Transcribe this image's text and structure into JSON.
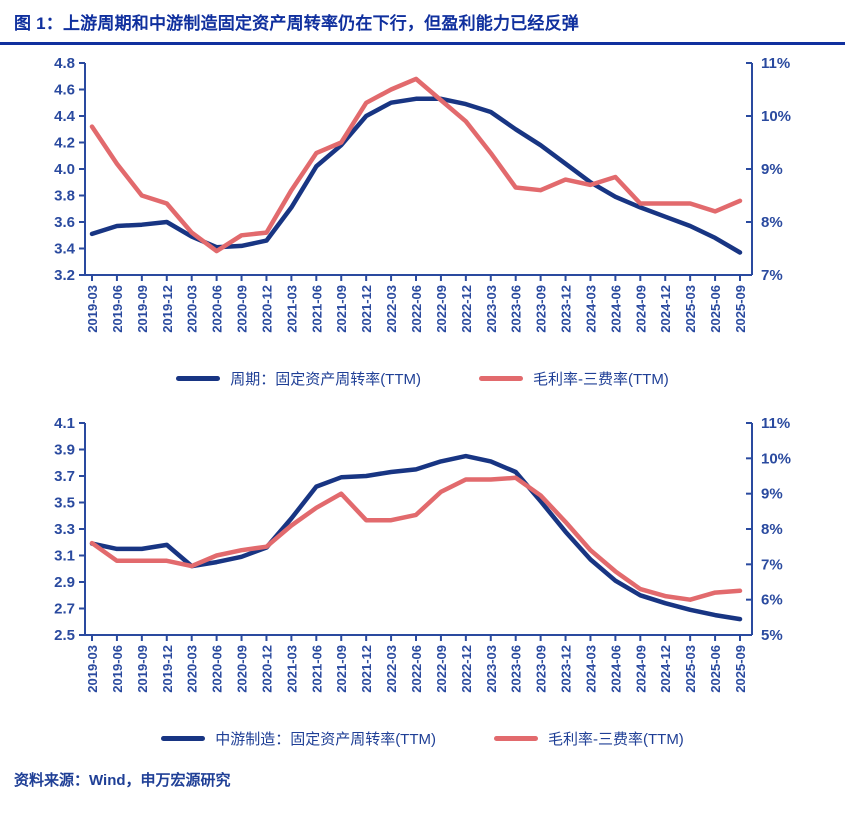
{
  "title": "图 1：上游周期和中游制造固定资产周转率仍在下行，但盈利能力已经反弹",
  "source": "资料来源：Wind，申万宏源研究",
  "colors": {
    "title_blue": "#10309E",
    "axis_blue": "#2A4A9F",
    "navy_line": "#183583",
    "red_line": "#E26A6D",
    "legend_text": "#1F3F96"
  },
  "chart_data": [
    {
      "type": "line",
      "grid": false,
      "legend_position": "bottom",
      "x": [
        "2019-03",
        "2019-06",
        "2019-09",
        "2019-12",
        "2020-03",
        "2020-06",
        "2020-09",
        "2020-12",
        "2021-03",
        "2021-06",
        "2021-09",
        "2021-12",
        "2022-03",
        "2022-06",
        "2022-09",
        "2022-12",
        "2023-03",
        "2023-06",
        "2023-09",
        "2023-12",
        "2024-03",
        "2024-06",
        "2024-09",
        "2024-12",
        "2025-03",
        "2025-06",
        "2025-09"
      ],
      "left_axis": {
        "min": 3.2,
        "max": 4.8,
        "tick_labels": [
          "4.8",
          "4.6",
          "4.4",
          "4.2",
          "4.0",
          "3.8",
          "3.6",
          "3.4",
          "3.2"
        ]
      },
      "right_axis": {
        "min": 7,
        "max": 11,
        "tick_labels": [
          "11%",
          "10%",
          "9%",
          "8%",
          "7%"
        ]
      },
      "series": [
        {
          "name": "周期：固定资产周转率(TTM)",
          "axis": "left",
          "color": "#183583",
          "values": [
            3.51,
            3.57,
            3.58,
            3.6,
            3.49,
            3.41,
            3.42,
            3.46,
            3.71,
            4.02,
            4.18,
            4.4,
            4.5,
            4.53,
            4.53,
            4.49,
            4.43,
            4.3,
            4.18,
            4.04,
            3.9,
            3.79,
            3.71,
            3.64,
            3.57,
            3.48,
            3.37
          ]
        },
        {
          "name": "毛利率-三费率(TTM)",
          "axis": "right",
          "color": "#E26A6D",
          "values": [
            9.8,
            9.1,
            8.5,
            8.35,
            7.8,
            7.45,
            7.75,
            7.8,
            8.6,
            9.3,
            9.5,
            10.25,
            10.5,
            10.7,
            10.3,
            9.9,
            9.3,
            8.65,
            8.6,
            8.8,
            8.7,
            8.85,
            8.35,
            8.35,
            8.35,
            8.2,
            8.4
          ]
        }
      ]
    },
    {
      "type": "line",
      "grid": false,
      "legend_position": "bottom",
      "x": [
        "2019-03",
        "2019-06",
        "2019-09",
        "2019-12",
        "2020-03",
        "2020-06",
        "2020-09",
        "2020-12",
        "2021-03",
        "2021-06",
        "2021-09",
        "2021-12",
        "2022-03",
        "2022-06",
        "2022-09",
        "2022-12",
        "2023-03",
        "2023-06",
        "2023-09",
        "2023-12",
        "2024-03",
        "2024-06",
        "2024-09",
        "2024-12",
        "2025-03",
        "2025-06",
        "2025-09"
      ],
      "left_axis": {
        "min": 2.5,
        "max": 4.1,
        "tick_labels": [
          "4.1",
          "3.9",
          "3.7",
          "3.5",
          "3.3",
          "3.1",
          "2.9",
          "2.7",
          "2.5"
        ]
      },
      "right_axis": {
        "min": 5,
        "max": 11,
        "tick_labels": [
          "11%",
          "10%",
          "9%",
          "8%",
          "7%",
          "6%",
          "5%"
        ]
      },
      "series": [
        {
          "name": "中游制造：固定资产周转率(TTM)",
          "axis": "left",
          "color": "#183583",
          "values": [
            3.19,
            3.15,
            3.15,
            3.18,
            3.02,
            3.05,
            3.09,
            3.16,
            3.38,
            3.62,
            3.69,
            3.7,
            3.73,
            3.75,
            3.81,
            3.85,
            3.81,
            3.73,
            3.51,
            3.28,
            3.07,
            2.91,
            2.8,
            2.74,
            2.69,
            2.65,
            2.62
          ]
        },
        {
          "name": "毛利率-三费率(TTM)",
          "axis": "right",
          "color": "#E26A6D",
          "values": [
            7.6,
            7.1,
            7.1,
            7.1,
            6.95,
            7.25,
            7.4,
            7.5,
            8.1,
            8.6,
            9.0,
            8.25,
            8.25,
            8.4,
            9.05,
            9.4,
            9.4,
            9.45,
            8.95,
            8.2,
            7.4,
            6.8,
            6.3,
            6.1,
            6.0,
            6.2,
            6.25
          ]
        }
      ]
    }
  ]
}
